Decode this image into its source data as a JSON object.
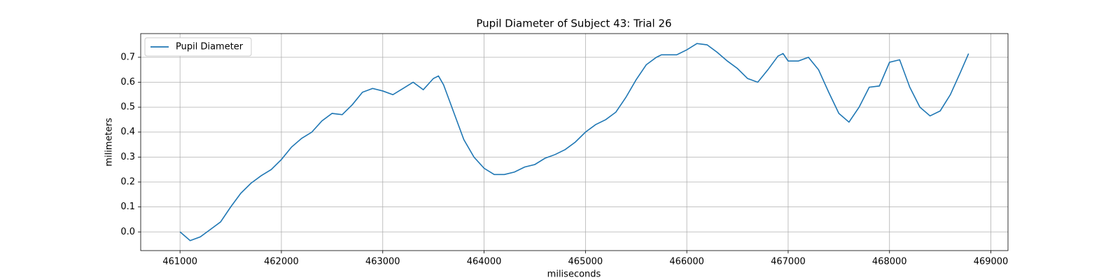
{
  "chart_data": {
    "type": "line",
    "title": "Pupil Diameter of Subject 43: Trial 26",
    "xlabel": "miliseconds",
    "ylabel": "milimeters",
    "x": [
      461000,
      461100,
      461200,
      461300,
      461400,
      461500,
      461600,
      461700,
      461800,
      461900,
      462000,
      462100,
      462200,
      462300,
      462400,
      462500,
      462600,
      462700,
      462800,
      462900,
      463000,
      463100,
      463200,
      463300,
      463400,
      463500,
      463550,
      463600,
      463700,
      463800,
      463900,
      464000,
      464100,
      464200,
      464300,
      464400,
      464500,
      464600,
      464700,
      464800,
      464900,
      465000,
      465100,
      465200,
      465300,
      465400,
      465500,
      465600,
      465700,
      465750,
      465800,
      465900,
      466000,
      466100,
      466200,
      466300,
      466400,
      466500,
      466600,
      466700,
      466800,
      466900,
      466950,
      467000,
      467100,
      467200,
      467300,
      467400,
      467500,
      467600,
      467700,
      467800,
      467900,
      468000,
      468100,
      468200,
      468300,
      468400,
      468500,
      468600,
      468700,
      468780
    ],
    "series": [
      {
        "name": "Pupil Diameter",
        "color": "#1f77b4",
        "values": [
          0.0,
          -0.035,
          -0.02,
          0.01,
          0.04,
          0.1,
          0.155,
          0.195,
          0.225,
          0.25,
          0.29,
          0.34,
          0.375,
          0.4,
          0.445,
          0.475,
          0.47,
          0.51,
          0.56,
          0.575,
          0.565,
          0.55,
          0.575,
          0.6,
          0.57,
          0.615,
          0.625,
          0.59,
          0.48,
          0.37,
          0.3,
          0.255,
          0.23,
          0.23,
          0.24,
          0.26,
          0.27,
          0.295,
          0.31,
          0.33,
          0.36,
          0.4,
          0.43,
          0.45,
          0.48,
          0.54,
          0.61,
          0.67,
          0.7,
          0.71,
          0.71,
          0.71,
          0.73,
          0.755,
          0.75,
          0.72,
          0.685,
          0.655,
          0.615,
          0.6,
          0.65,
          0.705,
          0.715,
          0.685,
          0.685,
          0.7,
          0.65,
          0.56,
          0.475,
          0.44,
          0.5,
          0.58,
          0.585,
          0.68,
          0.69,
          0.58,
          0.5,
          0.465,
          0.485,
          0.55,
          0.64,
          0.715
        ]
      }
    ],
    "xlim": [
      460612,
      469169
    ],
    "ylim": [
      -0.075,
      0.795
    ],
    "xticks": [
      461000,
      462000,
      463000,
      464000,
      465000,
      466000,
      467000,
      468000,
      469000
    ],
    "yticks": [
      {
        "value": 0,
        "label": "0.0"
      },
      0.1,
      0.2,
      0.3,
      0.4,
      0.5,
      0.6,
      0.7
    ],
    "grid": true,
    "legend": "upper left"
  }
}
